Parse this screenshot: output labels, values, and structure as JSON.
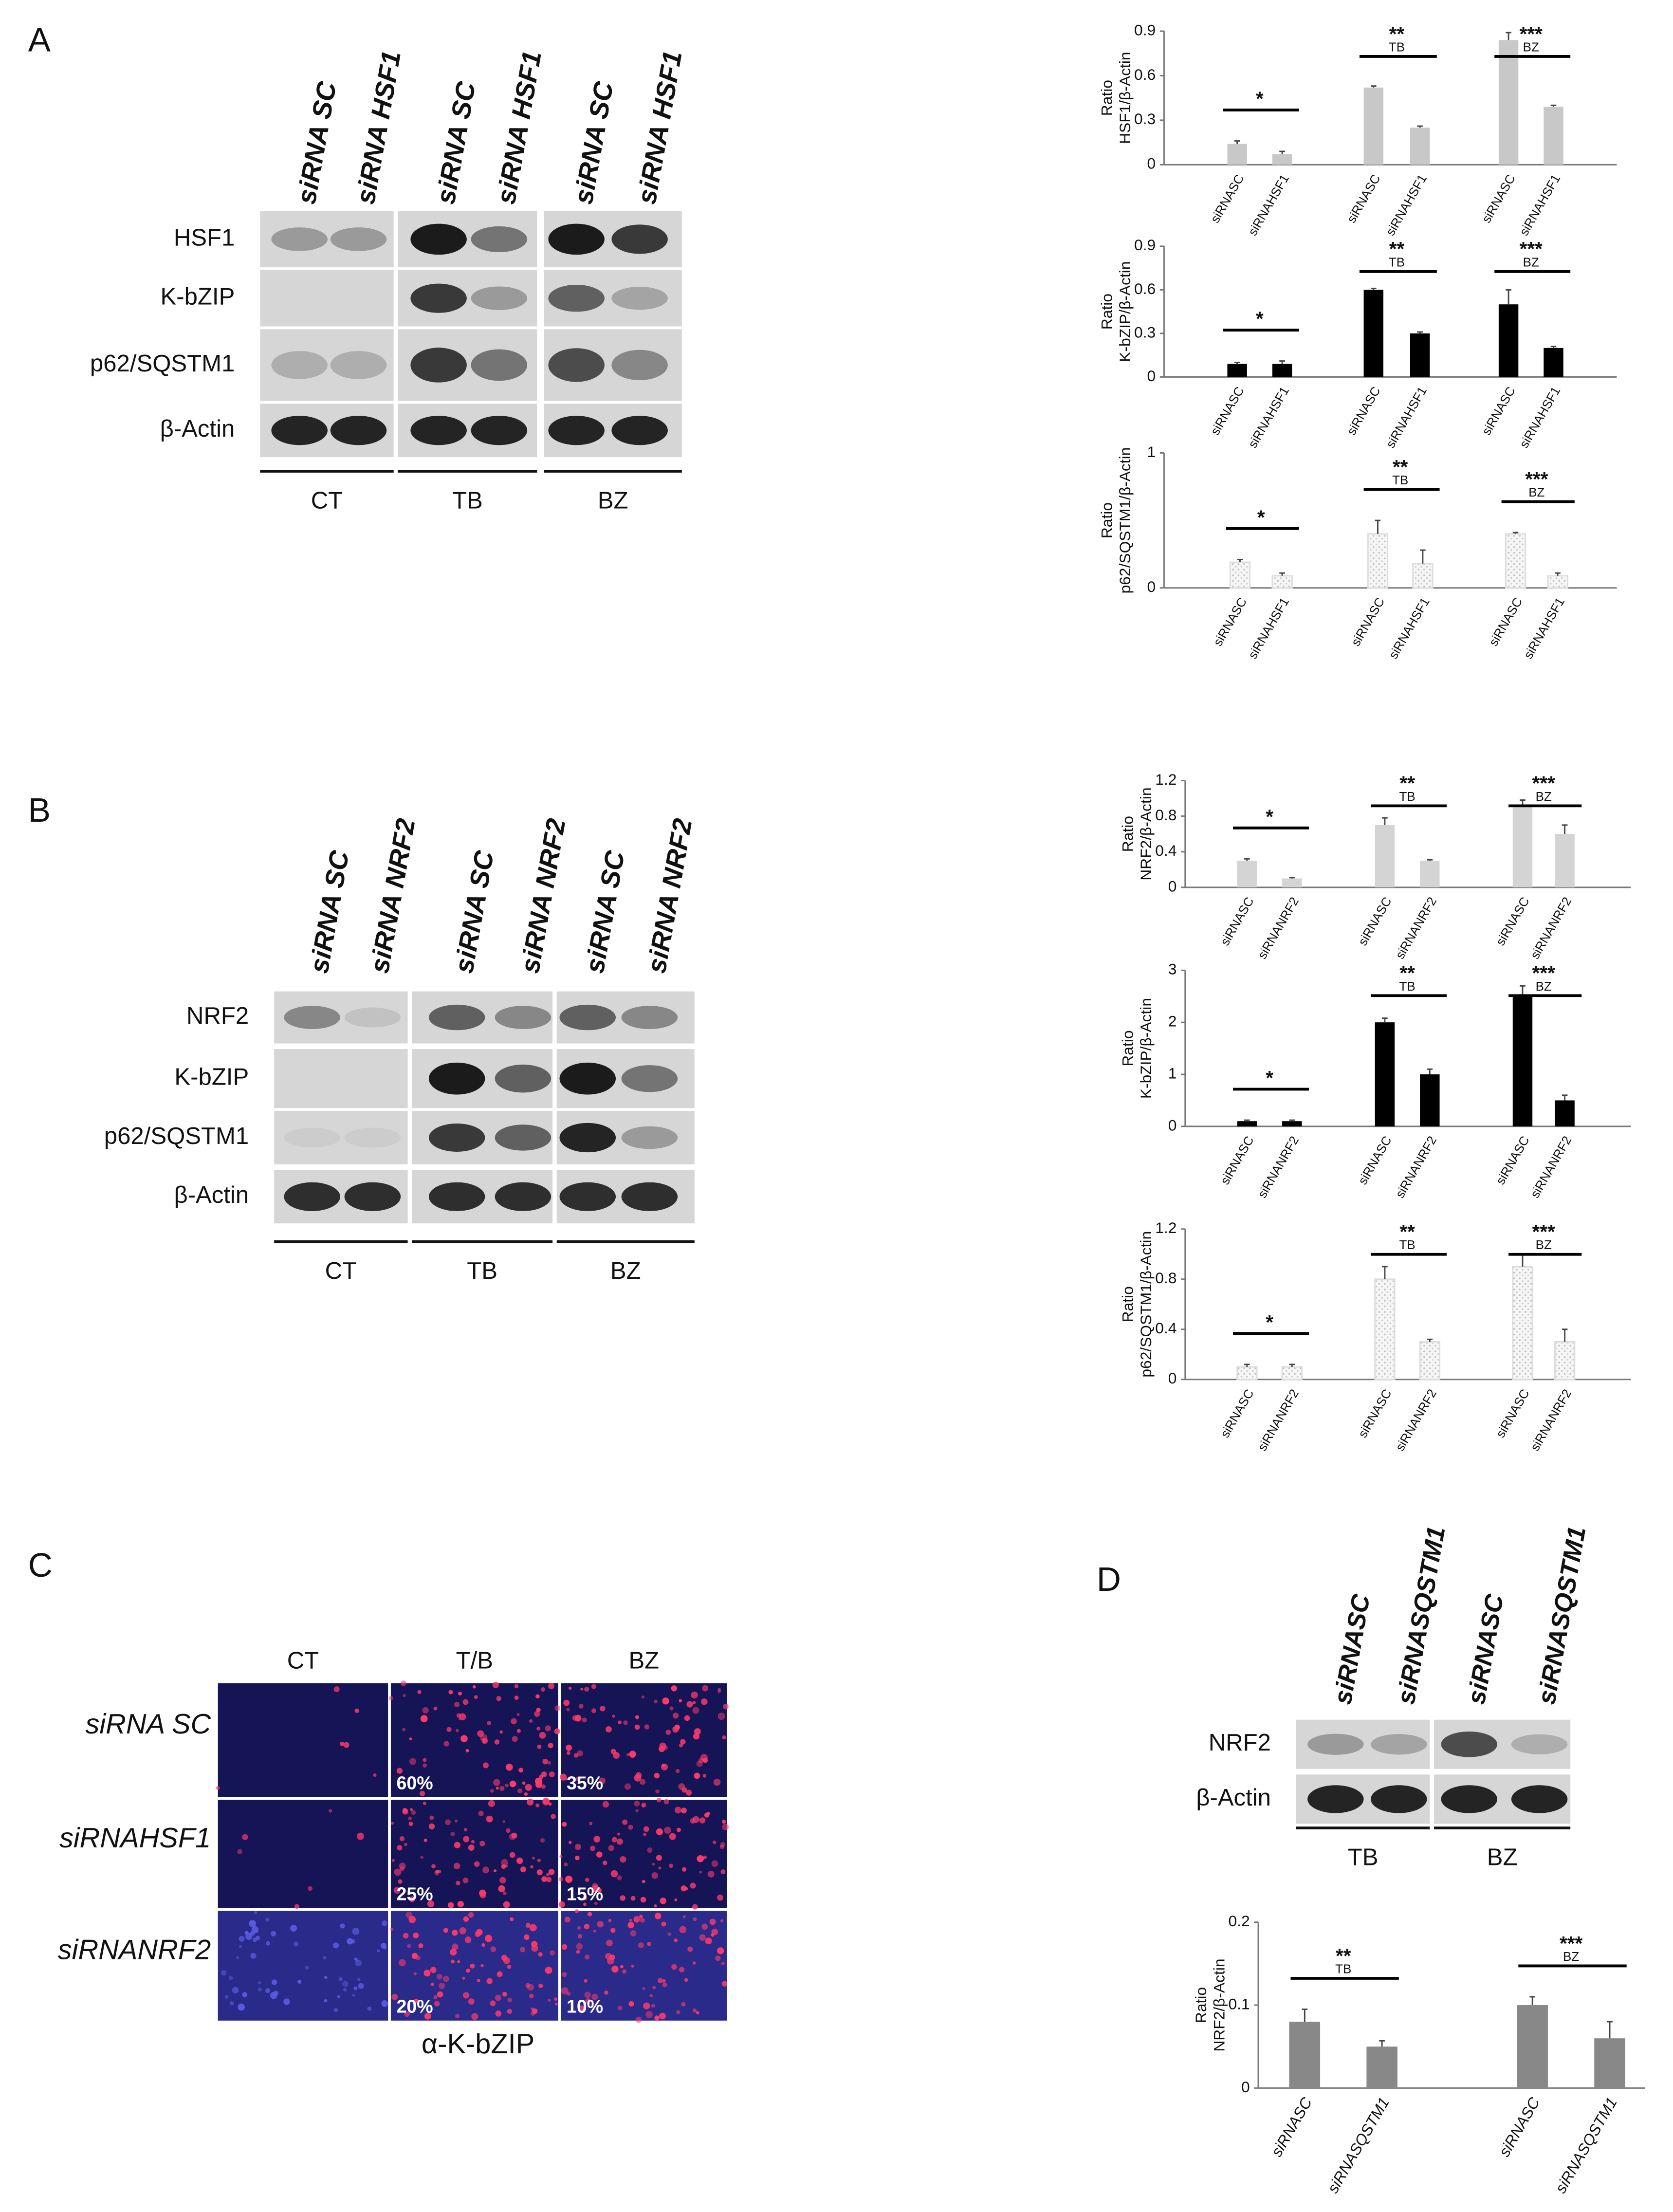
{
  "panel_labels": [
    "A",
    "B",
    "C",
    "D"
  ],
  "panel_a": {
    "lanes": [
      "siRNA SC",
      "siRNA HSF1",
      "siRNA SC",
      "siRNA HSF1",
      "siRNA SC",
      "siRNA HSF1"
    ],
    "rows": [
      "HSF1",
      "K-bZIP",
      "p62/SQSTM1",
      "β-Actin"
    ],
    "groups": [
      "CT",
      "TB",
      "BZ"
    ]
  },
  "panel_b": {
    "lanes": [
      "siRNA SC",
      "siRNA NRF2",
      "siRNA SC",
      "siRNA NRF2",
      "siRNA SC",
      "siRNA NRF2"
    ],
    "rows": [
      "NRF2",
      "K-bZIP",
      "p62/SQSTM1",
      "β-Actin"
    ],
    "groups": [
      "CT",
      "TB",
      "BZ"
    ]
  },
  "panel_c": {
    "columns": [
      "CT",
      "T/B",
      "BZ"
    ],
    "rows": [
      "siRNA SC",
      "siRNAHSF1",
      "siRNANRF2"
    ],
    "percentages": [
      [
        "60%",
        "35%"
      ],
      [
        "25%",
        "15%"
      ],
      [
        "20%",
        "10%"
      ]
    ],
    "caption": "α-K-bZIP"
  },
  "panel_d": {
    "lanes": [
      "siRNASC",
      "siRNASQSTM1",
      "siRNASC",
      "siRNASQSTM1"
    ],
    "rows": [
      "NRF2",
      "β-Actin"
    ],
    "groups": [
      "TB",
      "BZ"
    ]
  },
  "chart_data": [
    {
      "type": "bar",
      "y_label": [
        "Ratio",
        "HSF1/β-Actin"
      ],
      "categories": [
        "siRNASC",
        "siRNAHSF1",
        "siRNASC",
        "siRNAHSF1",
        "siRNASC",
        "siRNAHSF1"
      ],
      "values": [
        0.14,
        0.07,
        0.52,
        0.25,
        0.84,
        0.39
      ],
      "errors": [
        0.02,
        0.02,
        0.01,
        0.01,
        0.05,
        0.01
      ],
      "color": "#c8c8c8",
      "ylim": [
        0,
        0.9
      ],
      "yticks": [
        0,
        0.3,
        0.6,
        0.9
      ],
      "annotations": [
        {
          "text": "*"
        },
        {
          "text": "**",
          "label": "TB"
        },
        {
          "text": "***",
          "label": "BZ"
        }
      ]
    },
    {
      "type": "bar",
      "y_label": [
        "Ratio",
        "K-bZIP/β-Actin"
      ],
      "categories": [
        "siRNASC",
        "siRNAHSF1",
        "siRNASC",
        "siRNAHSF1",
        "siRNASC",
        "siRNAHSF1"
      ],
      "values": [
        0.09,
        0.09,
        0.6,
        0.3,
        0.5,
        0.2
      ],
      "errors": [
        0.01,
        0.02,
        0.01,
        0.01,
        0.1,
        0.01
      ],
      "color": "#000000",
      "ylim": [
        0,
        0.9
      ],
      "yticks": [
        0,
        0.3,
        0.6,
        0.9
      ],
      "annotations": [
        {
          "text": "*"
        },
        {
          "text": "**",
          "label": "TB"
        },
        {
          "text": "***",
          "label": "BZ"
        }
      ]
    },
    {
      "type": "bar",
      "y_label": [
        "Ratio",
        "p62/SQSTM1/β-Actin"
      ],
      "categories": [
        "siRNASC",
        "siRNAHSF1",
        "siRNASC",
        "siRNAHSF1",
        "siRNASC",
        "siRNAHSF1"
      ],
      "values": [
        0.19,
        0.09,
        0.4,
        0.18,
        0.4,
        0.09
      ],
      "errors": [
        0.02,
        0.02,
        0.1,
        0.1,
        0.01,
        0.02
      ],
      "color": "#f4f4f4",
      "fill_pattern": "dots",
      "ylim": [
        0,
        1
      ],
      "yticks": [
        0,
        1
      ],
      "annotations": [
        {
          "text": "*"
        },
        {
          "text": "**",
          "label": "TB"
        },
        {
          "text": "***",
          "label": "BZ"
        }
      ]
    },
    {
      "type": "bar",
      "y_label": [
        "Ratio",
        "NRF2/β-Actin"
      ],
      "categories": [
        "siRNASC",
        "siRNANRF2",
        "siRNASC",
        "siRNANRF2",
        "siRNASC",
        "siRNANRF2"
      ],
      "values": [
        0.3,
        0.1,
        0.7,
        0.3,
        0.9,
        0.6
      ],
      "errors": [
        0.02,
        0.01,
        0.08,
        0.01,
        0.08,
        0.1
      ],
      "color": "#d4d4d4",
      "ylim": [
        0,
        1.2
      ],
      "yticks": [
        0,
        0.4,
        0.8,
        1.2
      ],
      "annotations": [
        {
          "text": "*"
        },
        {
          "text": "**",
          "label": "TB"
        },
        {
          "text": "***",
          "label": "BZ"
        }
      ]
    },
    {
      "type": "bar",
      "y_label": [
        "Ratio",
        "K-bZIP/β-Actin"
      ],
      "categories": [
        "siRNASC",
        "siRNANRF2",
        "siRNASC",
        "siRNANRF2",
        "siRNASC",
        "siRNANRF2"
      ],
      "values": [
        0.1,
        0.1,
        2.0,
        1.0,
        2.5,
        0.5
      ],
      "errors": [
        0.02,
        0.02,
        0.08,
        0.1,
        0.2,
        0.1
      ],
      "color": "#000000",
      "ylim": [
        0,
        3
      ],
      "yticks": [
        0,
        1,
        2,
        3
      ],
      "annotations": [
        {
          "text": "*"
        },
        {
          "text": "**",
          "label": "TB"
        },
        {
          "text": "***",
          "label": "BZ"
        }
      ]
    },
    {
      "type": "bar",
      "y_label": [
        "Ratio",
        "p62/SQSTM1/β-Actin"
      ],
      "categories": [
        "siRNASC",
        "siRNANRF2",
        "siRNASC",
        "siRNANRF2",
        "siRNASC",
        "siRNANRF2"
      ],
      "values": [
        0.1,
        0.1,
        0.8,
        0.3,
        0.9,
        0.3
      ],
      "errors": [
        0.02,
        0.02,
        0.1,
        0.02,
        0.1,
        0.1
      ],
      "color": "#f4f4f4",
      "fill_pattern": "dots",
      "ylim": [
        0,
        1.2
      ],
      "yticks": [
        0,
        0.4,
        0.8,
        1.2
      ],
      "annotations": [
        {
          "text": "*"
        },
        {
          "text": "**",
          "label": "TB"
        },
        {
          "text": "***",
          "label": "BZ"
        }
      ]
    },
    {
      "type": "bar",
      "y_label": [
        "Ratio",
        "NRF2/β-Actin"
      ],
      "categories": [
        "siRNASC",
        "siRNASQSTM1",
        "siRNASC",
        "siRNASQSTM1"
      ],
      "values": [
        0.08,
        0.05,
        0.1,
        0.06
      ],
      "errors": [
        0.015,
        0.007,
        0.01,
        0.02
      ],
      "color": "#888888",
      "ylim": [
        0,
        0.2
      ],
      "yticks": [
        0,
        0.1,
        0.2
      ],
      "annotations": [
        {
          "text": "**",
          "label": "TB"
        },
        {
          "text": "***",
          "label": "BZ"
        }
      ]
    }
  ]
}
